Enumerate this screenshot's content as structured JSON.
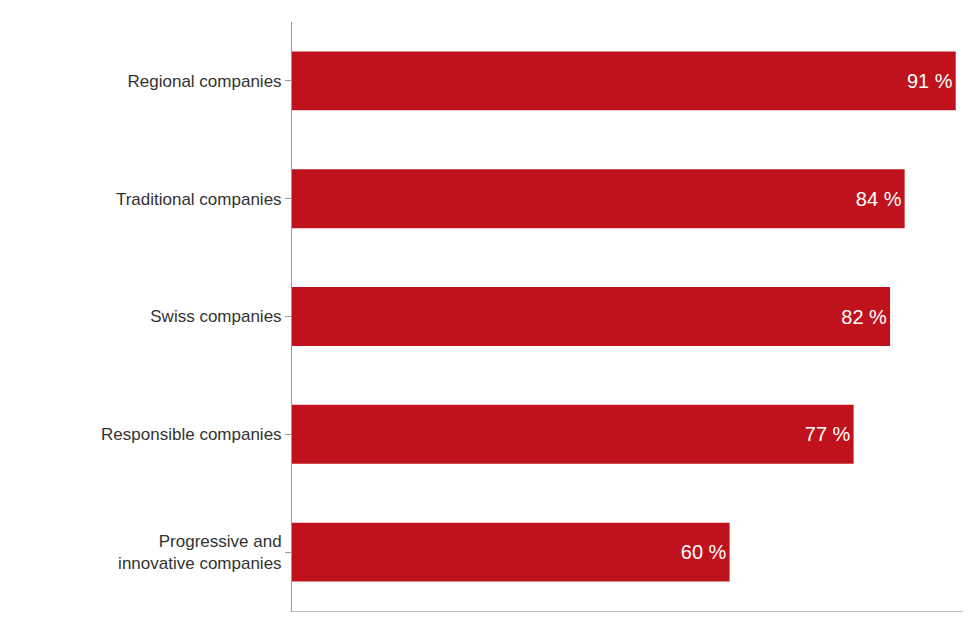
{
  "chart_data": {
    "type": "bar",
    "orientation": "horizontal",
    "categories": [
      "Regional companies",
      "Traditional companies",
      "Swiss companies",
      "Responsible companies",
      "Progressive and innovative companies"
    ],
    "values": [
      91,
      84,
      82,
      77,
      60
    ],
    "value_labels": [
      "91 %",
      "84 %",
      "82 %",
      "77 %",
      "60 %"
    ],
    "color": "#c0121c",
    "xlim": [
      0,
      92
    ],
    "data_labels": true,
    "tick_labels": "y",
    "grid": false
  }
}
